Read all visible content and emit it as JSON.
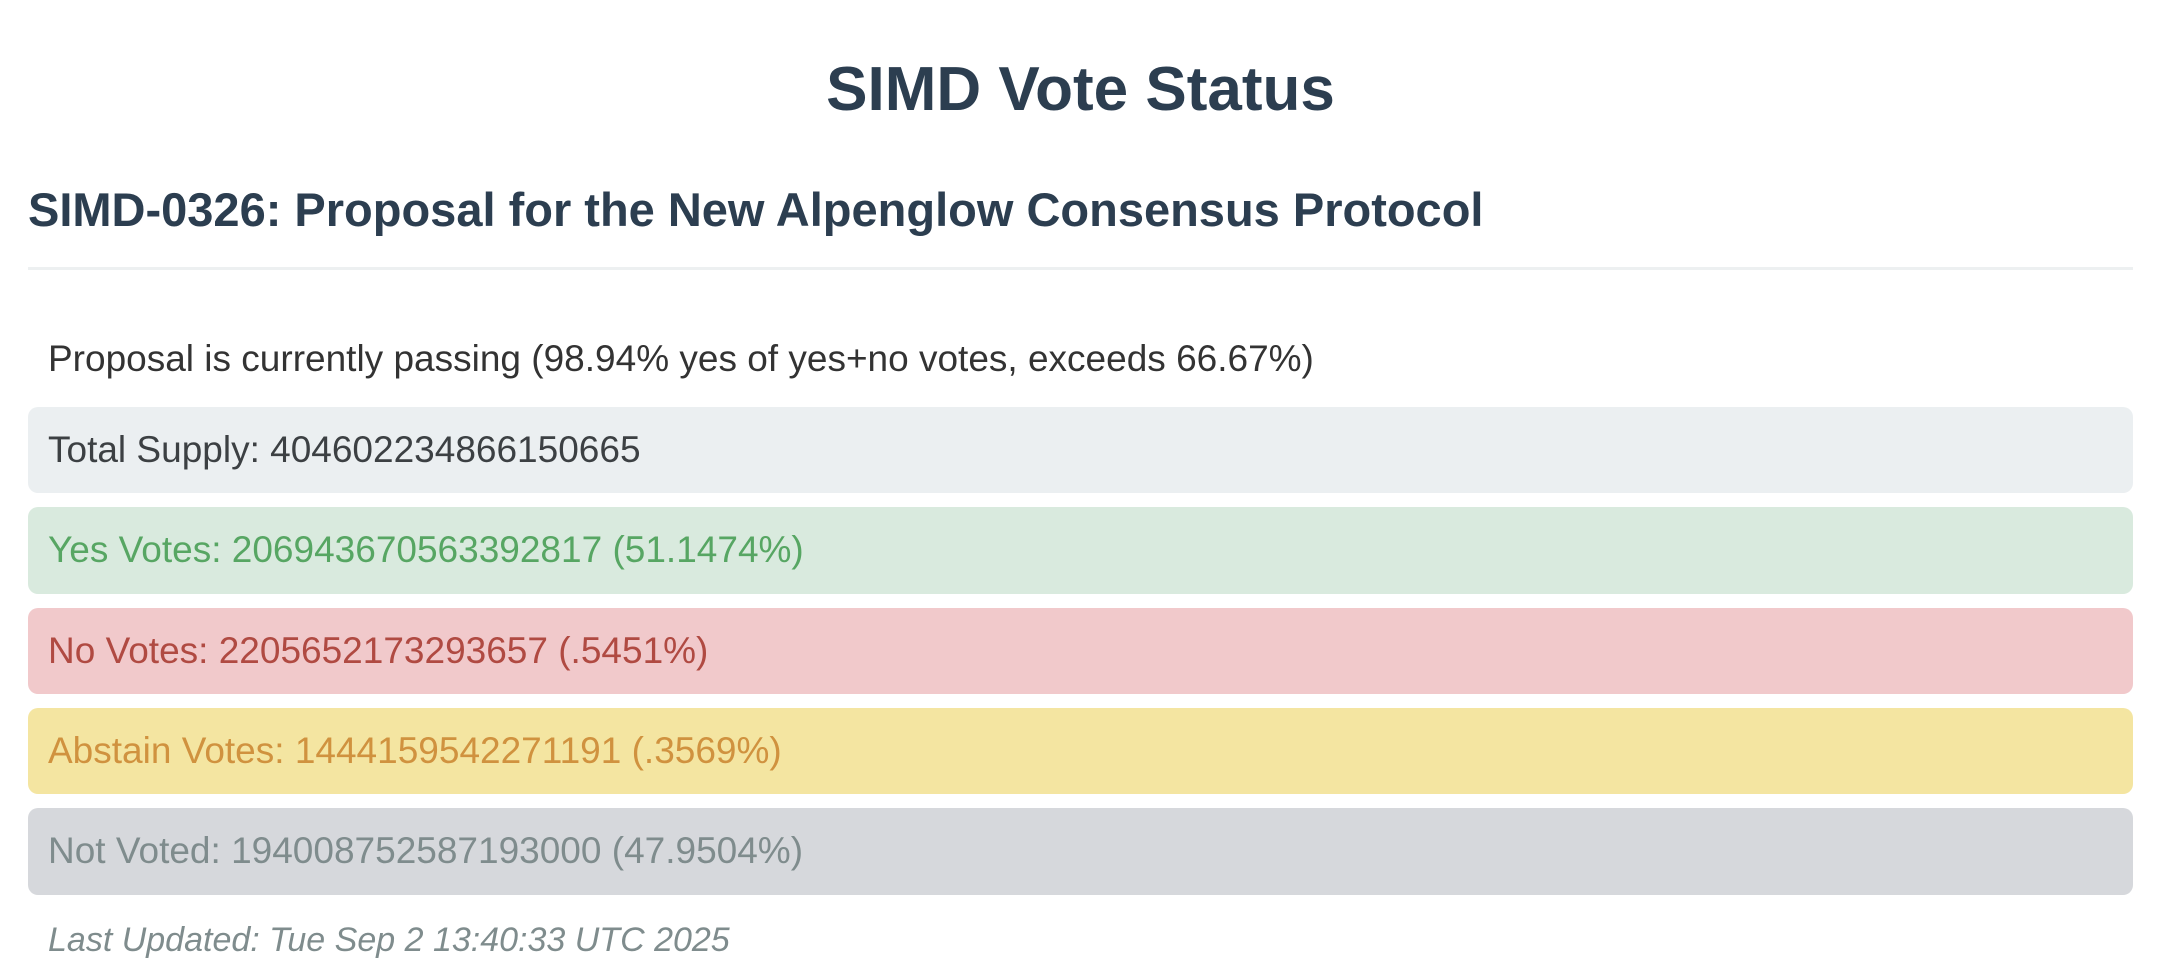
{
  "page_title": "SIMD Vote Status",
  "proposal": {
    "heading": "SIMD-0326: Proposal for the New Alpenglow Consensus Protocol",
    "status_line": "Proposal is currently passing (98.94% yes of yes+no votes, exceeds 66.67%)",
    "passing_percent": "98.94%",
    "threshold_percent": "66.67%"
  },
  "vote_panel": {
    "rows": [
      {
        "key": "total-supply",
        "label": "Total Supply",
        "value": "404602234866150665",
        "percent": "",
        "text": "Total Supply: 404602234866150665",
        "bg": "#ebeff1",
        "fg": "#3c4043"
      },
      {
        "key": "yes-votes",
        "label": "Yes Votes",
        "value": "206943670563392817",
        "percent": "51.1474%",
        "text": "Yes Votes: 206943670563392817 (51.1474%)",
        "bg": "#d9eade",
        "fg": "#57a663"
      },
      {
        "key": "no-votes",
        "label": "No Votes",
        "value": "2205652173293657",
        "percent": ".5451%",
        "text": "No Votes: 2205652173293657 (.5451%)",
        "bg": "#f1c9cb",
        "fg": "#b04a42"
      },
      {
        "key": "abstain-votes",
        "label": "Abstain Votes",
        "value": "1444159542271191",
        "percent": ".3569%",
        "text": "Abstain Votes: 1444159542271191 (.3569%)",
        "bg": "#f4e5a1",
        "fg": "#d0923f"
      },
      {
        "key": "not-voted",
        "label": "Not Voted",
        "value": "194008752587193000",
        "percent": "47.9504%",
        "text": "Not Voted: 194008752587193000 (47.9504%)",
        "bg": "#d6d8dc",
        "fg": "#7f8c8d"
      }
    ]
  },
  "footer": {
    "last_updated": "Last Updated: Tue Sep 2 13:40:33 UTC 2025"
  },
  "colors": {
    "heading": "#2c3e50",
    "body_text": "#333333",
    "divider": "#edf0f1",
    "muted": "#7f8c8d",
    "background": "#ffffff"
  }
}
